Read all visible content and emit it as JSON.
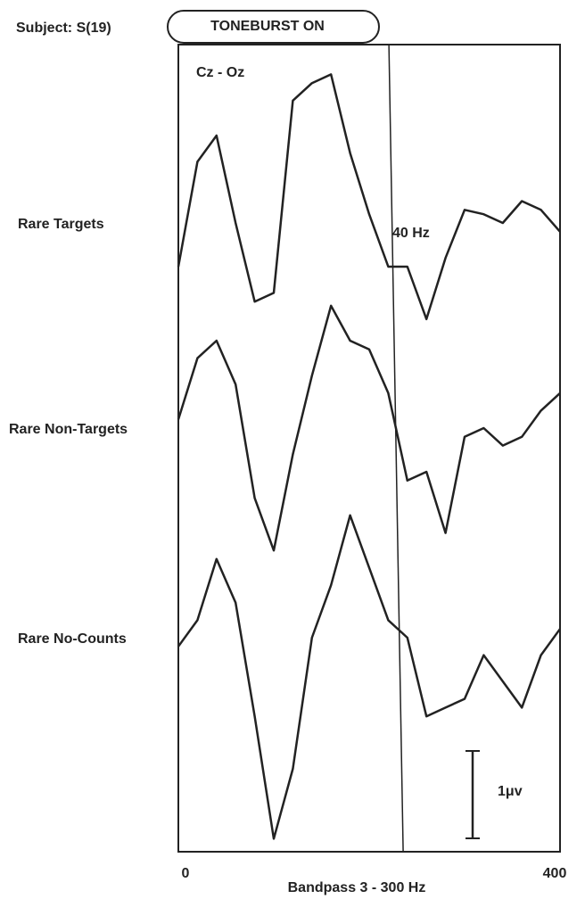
{
  "chart_data": {
    "type": "line",
    "subject": "Subject:  S(19)",
    "stimulus_label": "TONEBURST ON",
    "derivation": "Cz - Oz",
    "annotation": "40 Hz",
    "xlabel": "Bandpass 3 - 300 Hz",
    "xlim": [
      0,
      400
    ],
    "xticks": [
      0,
      400
    ],
    "vline": 230,
    "scale_bar": {
      "value": 1,
      "label": "1μv"
    },
    "x": [
      0,
      20,
      40,
      60,
      80,
      100,
      120,
      140,
      160,
      180,
      200,
      220,
      240,
      260,
      280,
      300,
      320,
      340,
      360,
      380,
      400
    ],
    "series": [
      {
        "name": "Rare Targets",
        "color": "#222222",
        "values": [
          -0.5,
          0.7,
          1.0,
          0,
          -0.9,
          -0.8,
          1.4,
          1.6,
          1.7,
          0.8,
          0.1,
          -0.5,
          -0.5,
          -1.1,
          -0.4,
          0.15,
          0.1,
          0,
          0.25,
          0.15,
          -0.1
        ]
      },
      {
        "name": "Rare Non-Targets",
        "color": "#222222",
        "values": [
          0.1,
          0.8,
          1.0,
          0.5,
          -0.8,
          -1.4,
          -0.3,
          0.6,
          1.4,
          1.0,
          0.9,
          0.4,
          -0.6,
          -0.5,
          -1.2,
          -0.1,
          0,
          -0.2,
          -0.1,
          0.2,
          0.4
        ]
      },
      {
        "name": "Rare No-Counts",
        "color": "#222222",
        "values": [
          -0.1,
          0.2,
          0.9,
          0.4,
          -0.9,
          -2.3,
          -1.5,
          0,
          0.6,
          1.4,
          0.8,
          0.2,
          0,
          -0.9,
          -0.8,
          -0.7,
          -0.2,
          -0.5,
          -0.8,
          -0.2,
          0.1
        ]
      }
    ]
  }
}
